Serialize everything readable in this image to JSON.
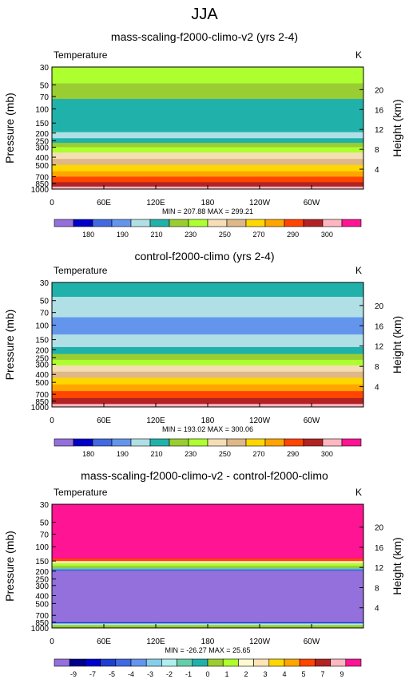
{
  "page_title": "JJA",
  "chart_data": [
    {
      "type": "heatmap",
      "title": "mass-scaling-f2000-climo-v2 (yrs 2-4)",
      "left_label": "Temperature",
      "right_label": "K",
      "ylabel": "Pressure (mb)",
      "y2label": "Height (km)",
      "stats": "MIN = 207.88  MAX = 299.21",
      "x_ticks": [
        "0",
        "60E",
        "120E",
        "180",
        "120W",
        "60W"
      ],
      "y_ticks": [
        "30",
        "50",
        "70",
        "100",
        "150",
        "200",
        "250",
        "300",
        "400",
        "500",
        "700",
        "850",
        "1000"
      ],
      "y2_ticks": [
        "20",
        "16",
        "12",
        "8",
        "4"
      ],
      "x_range": [
        0,
        360
      ],
      "y_range_mb": [
        30,
        1000
      ],
      "y_log_scale": true,
      "colorbar": {
        "levels": [
          175,
          180,
          185,
          190,
          200,
          210,
          220,
          230,
          240,
          250,
          260,
          270,
          280,
          290,
          295,
          300
        ],
        "labels": [
          "180",
          "190",
          "210",
          "230",
          "250",
          "270",
          "290",
          "300"
        ]
      },
      "bands": [
        {
          "p_top": 30,
          "p_bottom": 48,
          "value": 235
        },
        {
          "p_top": 48,
          "p_bottom": 75,
          "value": 225
        },
        {
          "p_top": 75,
          "p_bottom": 125,
          "value": 215
        },
        {
          "p_top": 125,
          "p_bottom": 195,
          "value": 210
        },
        {
          "p_top": 195,
          "p_bottom": 232,
          "value": 205
        },
        {
          "p_top": 232,
          "p_bottom": 265,
          "value": 215
        },
        {
          "p_top": 265,
          "p_bottom": 300,
          "value": 225
        },
        {
          "p_top": 300,
          "p_bottom": 350,
          "value": 235
        },
        {
          "p_top": 350,
          "p_bottom": 420,
          "value": 245
        },
        {
          "p_top": 420,
          "p_bottom": 500,
          "value": 255
        },
        {
          "p_top": 500,
          "p_bottom": 600,
          "value": 265
        },
        {
          "p_top": 600,
          "p_bottom": 700,
          "value": 275
        },
        {
          "p_top": 700,
          "p_bottom": 820,
          "value": 285
        },
        {
          "p_top": 820,
          "p_bottom": 930,
          "value": 292
        },
        {
          "p_top": 930,
          "p_bottom": 1000,
          "value": 297
        }
      ]
    },
    {
      "type": "heatmap",
      "title": "control-f2000-climo (yrs 2-4)",
      "left_label": "Temperature",
      "right_label": "K",
      "ylabel": "Pressure (mb)",
      "y2label": "Height (km)",
      "stats": "MIN = 193.02  MAX = 300.06",
      "x_ticks": [
        "0",
        "60E",
        "120E",
        "180",
        "120W",
        "60W"
      ],
      "y_ticks": [
        "30",
        "50",
        "70",
        "100",
        "150",
        "200",
        "250",
        "300",
        "400",
        "500",
        "700",
        "850",
        "1000"
      ],
      "y2_ticks": [
        "20",
        "16",
        "12",
        "8",
        "4"
      ],
      "x_range": [
        0,
        360
      ],
      "y_range_mb": [
        30,
        1000
      ],
      "y_log_scale": true,
      "colorbar": {
        "levels": [
          175,
          180,
          185,
          190,
          200,
          210,
          220,
          230,
          240,
          250,
          260,
          270,
          280,
          290,
          295,
          300
        ],
        "labels": [
          "180",
          "190",
          "210",
          "230",
          "250",
          "270",
          "290",
          "300"
        ]
      },
      "bands": [
        {
          "p_top": 30,
          "p_bottom": 45,
          "value": 215
        },
        {
          "p_top": 45,
          "p_bottom": 80,
          "value": 205
        },
        {
          "p_top": 80,
          "p_bottom": 130,
          "value": 195
        },
        {
          "p_top": 130,
          "p_bottom": 185,
          "value": 205
        },
        {
          "p_top": 185,
          "p_bottom": 225,
          "value": 215
        },
        {
          "p_top": 225,
          "p_bottom": 265,
          "value": 225
        },
        {
          "p_top": 265,
          "p_bottom": 310,
          "value": 235
        },
        {
          "p_top": 310,
          "p_bottom": 370,
          "value": 245
        },
        {
          "p_top": 370,
          "p_bottom": 440,
          "value": 255
        },
        {
          "p_top": 440,
          "p_bottom": 530,
          "value": 265
        },
        {
          "p_top": 530,
          "p_bottom": 640,
          "value": 275
        },
        {
          "p_top": 640,
          "p_bottom": 780,
          "value": 285
        },
        {
          "p_top": 780,
          "p_bottom": 920,
          "value": 292
        },
        {
          "p_top": 920,
          "p_bottom": 1000,
          "value": 297
        }
      ]
    },
    {
      "type": "heatmap",
      "title": "mass-scaling-f2000-climo-v2 - control-f2000-climo",
      "left_label": "Temperature",
      "right_label": "K",
      "ylabel": "Pressure (mb)",
      "y2label": "Height (km)",
      "stats": "MIN = -26.27  MAX = 25.65",
      "x_ticks": [
        "0",
        "60E",
        "120E",
        "180",
        "120W",
        "60W"
      ],
      "y_ticks": [
        "30",
        "50",
        "70",
        "100",
        "150",
        "200",
        "250",
        "300",
        "400",
        "500",
        "700",
        "850",
        "1000"
      ],
      "y2_ticks": [
        "20",
        "16",
        "12",
        "8",
        "4"
      ],
      "x_range": [
        0,
        360
      ],
      "y_range_mb": [
        30,
        1000
      ],
      "y_log_scale": true,
      "colorbar": {
        "levels": [
          -10,
          -9,
          -8,
          -7,
          -6,
          -5,
          -4,
          -3,
          -2,
          -1,
          0,
          1,
          2,
          3,
          4,
          5,
          6,
          7,
          8,
          9,
          10
        ],
        "labels": [
          "-9",
          "-7",
          "-5",
          "-4",
          "-3",
          "-2",
          "-1",
          "0",
          "1",
          "2",
          "3",
          "4",
          "5",
          "7",
          "9"
        ]
      },
      "bands": [
        {
          "p_top": 30,
          "p_bottom": 140,
          "value": 12
        },
        {
          "p_top": 140,
          "p_bottom": 150,
          "value": 6
        },
        {
          "p_top": 150,
          "p_bottom": 160,
          "value": 3
        },
        {
          "p_top": 160,
          "p_bottom": 172,
          "value": 1.5
        },
        {
          "p_top": 172,
          "p_bottom": 182,
          "value": 0.5
        },
        {
          "p_top": 182,
          "p_bottom": 190,
          "value": -2
        },
        {
          "p_top": 190,
          "p_bottom": 198,
          "value": -6
        },
        {
          "p_top": 198,
          "p_bottom": 850,
          "value": -12
        },
        {
          "p_top": 850,
          "p_bottom": 880,
          "value": -7
        },
        {
          "p_top": 880,
          "p_bottom": 920,
          "value": -3
        },
        {
          "p_top": 920,
          "p_bottom": 1000,
          "value": 0.5
        }
      ]
    }
  ]
}
